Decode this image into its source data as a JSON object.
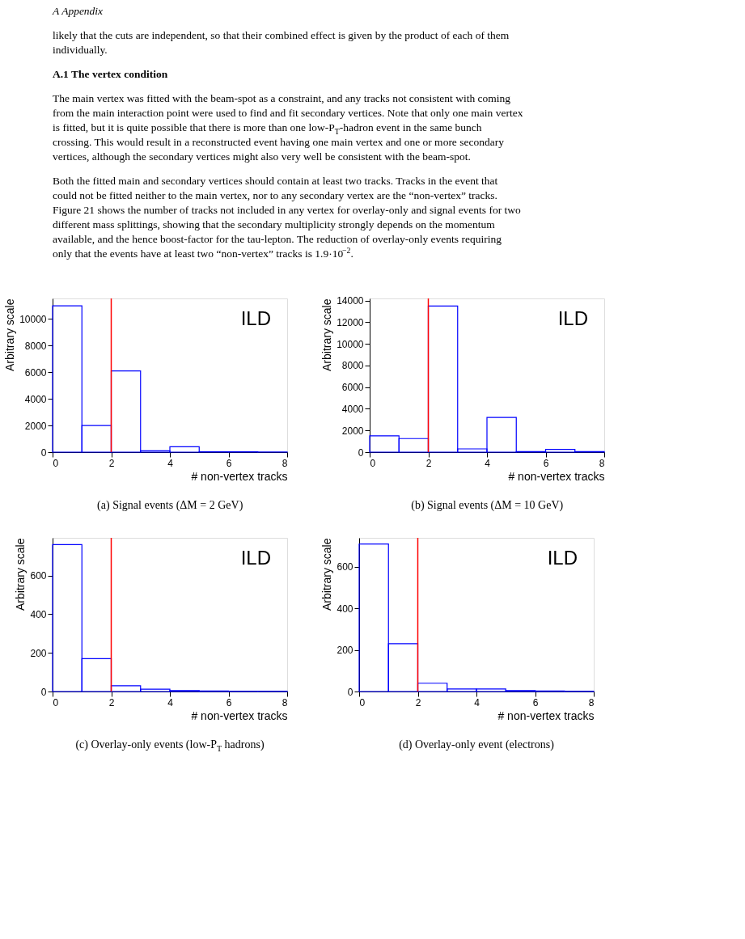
{
  "chart_data": [
    {
      "type": "other",
      "annotations": [
        "A   Appendix",
        "likely that the cuts are independent, so that their combined effect is given by the product of each of them individually.",
        "A.1   The vertex condition",
        "The main vertex was fitted with the beam-spot as a constraint, and any tracks not consistent with coming from the main interaction point were used to find and fit secondary vertices. Note that only one main vertex is fitted, but it is quite possible that there is more than one low-P$_{T}$-hadron event in the same bunch crossing. This would result in a reconstructed event having one main vertex and one or more secondary vertices, although the secondary vertices might also very well be consistent with the beam-spot.",
        "Both the fitted main and secondary vertices should contain at least two tracks. Tracks in the event that could not be fitted neither to the main vertex, nor to any secondary vertex are the “non-vertex” tracks. Figure 21 shows the number of tracks not included in any vertex for overlay-only and signal events for two different mass splittings, showing that the secondary multiplicity strongly depends on the momentum available, and the hence boost-factor for the tau-lepton. The reduction of overlay-only events requiring only that the events have at least two “non-vertex” tracks is 1.9·10$^{−2}$."
      ]
    },
    {
      "type": "histogram",
      "title": "(a) Signal events (ΔM = 2 GeV)",
      "xlabel": "# non-vertex tracks",
      "ylabel": "Arbitrary scale",
      "color": "#0000ff",
      "grid": false,
      "bins": [
        0,
        1,
        2,
        3,
        4,
        5,
        6,
        7,
        8
      ],
      "values": [
        11000,
        2000,
        6100,
        100,
        400,
        30,
        20,
        10
      ],
      "xlim": [
        0,
        8
      ],
      "xticks": [
        0,
        2,
        4,
        6,
        8
      ],
      "ylim": [
        0,
        11550
      ],
      "yticks": [
        0,
        2000,
        4000,
        6000,
        8000,
        10000
      ],
      "ref_lines": [
        {
          "axis": "x",
          "value": 2,
          "color": "#ff0000"
        }
      ],
      "annotations": [
        "ILD"
      ]
    },
    {
      "type": "histogram",
      "title": "(b) Signal events (ΔM = 10 GeV)",
      "xlabel": "# non-vertex tracks",
      "ylabel": "Arbitrary scale",
      "color": "#0000ff",
      "grid": false,
      "bins": [
        0,
        1,
        2,
        3,
        4,
        5,
        6,
        7,
        8
      ],
      "values": [
        1500,
        1250,
        13500,
        300,
        3200,
        50,
        250,
        50
      ],
      "xlim": [
        0,
        8
      ],
      "xticks": [
        0,
        2,
        4,
        6,
        8
      ],
      "ylim": [
        0,
        14200
      ],
      "yticks": [
        0,
        2000,
        4000,
        6000,
        8000,
        10000,
        12000,
        14000
      ],
      "ref_lines": [
        {
          "axis": "x",
          "value": 2,
          "color": "#ff0000"
        }
      ],
      "annotations": [
        "ILD"
      ]
    },
    {
      "type": "histogram",
      "title": "(c) Overlay-only events (low-P$_{T}$ hadrons)",
      "xlabel": "# non-vertex tracks",
      "ylabel": "Arbitrary scale",
      "color": "#0000ff",
      "grid": false,
      "bins": [
        0,
        1,
        2,
        3,
        4,
        5,
        6,
        7,
        8
      ],
      "values": [
        760,
        170,
        30,
        12,
        5,
        3,
        2,
        2
      ],
      "xlim": [
        0,
        8
      ],
      "xticks": [
        0,
        2,
        4,
        6,
        8
      ],
      "ylim": [
        0,
        795
      ],
      "yticks": [
        0,
        200,
        400,
        600
      ],
      "ref_lines": [
        {
          "axis": "x",
          "value": 2,
          "color": "#ff0000"
        }
      ],
      "annotations": [
        "ILD"
      ]
    },
    {
      "type": "histogram",
      "title": "(d) Overlay-only event (electrons)",
      "xlabel": "# non-vertex tracks",
      "ylabel": "Arbitrary scale",
      "color": "#0000ff",
      "grid": false,
      "bins": [
        0,
        1,
        2,
        3,
        4,
        5,
        6,
        7,
        8
      ],
      "values": [
        710,
        230,
        40,
        12,
        12,
        4,
        3,
        2
      ],
      "xlim": [
        0,
        8
      ],
      "xticks": [
        0,
        2,
        4,
        6,
        8
      ],
      "ylim": [
        0,
        740
      ],
      "yticks": [
        0,
        200,
        400,
        600
      ],
      "ref_lines": [
        {
          "axis": "x",
          "value": 2,
          "color": "#ff0000"
        }
      ],
      "annotations": [
        "ILD"
      ]
    }
  ]
}
